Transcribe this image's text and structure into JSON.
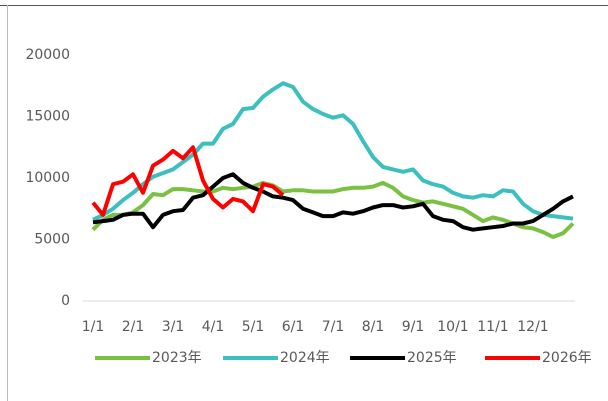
{
  "chart_data": {
    "type": "line",
    "categories": [
      "1/1",
      null,
      null,
      null,
      "2/1",
      null,
      null,
      null,
      "3/1",
      null,
      null,
      null,
      "4/1",
      null,
      null,
      null,
      "5/1",
      null,
      null,
      null,
      "6/1",
      null,
      null,
      null,
      "7/1",
      null,
      null,
      null,
      "8/1",
      null,
      null,
      null,
      "9/1",
      null,
      null,
      null,
      "10/1",
      null,
      null,
      null,
      "11/1",
      null,
      null,
      null,
      "12/1",
      null,
      null,
      null,
      null
    ],
    "series": [
      {
        "name": "2023年",
        "color": "#7ac143",
        "values": [
          5800,
          6600,
          7000,
          7000,
          7200,
          7800,
          8700,
          8600,
          9100,
          9100,
          9000,
          8900,
          8900,
          9200,
          9100,
          9200,
          9300,
          9600,
          9400,
          8900,
          9000,
          9000,
          8900,
          8900,
          8900,
          9100,
          9200,
          9200,
          9300,
          9600,
          9200,
          8500,
          8200,
          8000,
          8100,
          7900,
          7700,
          7500,
          7000,
          6500,
          6800,
          6600,
          6300,
          6000,
          5900,
          5600,
          5200,
          5500,
          6300
        ]
      },
      {
        "name": "2024年",
        "color": "#3cbfbf",
        "values": [
          6600,
          7000,
          7500,
          8200,
          8800,
          9500,
          10100,
          10400,
          10700,
          11300,
          11900,
          12800,
          12800,
          14000,
          14400,
          15600,
          15700,
          16600,
          17200,
          17700,
          17400,
          16200,
          15600,
          15200,
          14900,
          15100,
          14400,
          13000,
          11700,
          10900,
          10700,
          10500,
          10700,
          9800,
          9500,
          9300,
          8800,
          8500,
          8400,
          8600,
          8500,
          9000,
          8900,
          7900,
          7300,
          7000,
          6900,
          6800,
          6700
        ]
      },
      {
        "name": "2025年",
        "color": "#000000",
        "values": [
          6400,
          6500,
          6600,
          7000,
          7100,
          7100,
          6000,
          7000,
          7300,
          7400,
          8400,
          8600,
          9300,
          10000,
          10300,
          9600,
          9200,
          8900,
          8500,
          8400,
          8200,
          7500,
          7200,
          6900,
          6900,
          7200,
          7100,
          7300,
          7600,
          7800,
          7800,
          7600,
          7700,
          7900,
          6900,
          6600,
          6500,
          6000,
          5800,
          5900,
          6000,
          6100,
          6300,
          6300,
          6500,
          7000,
          7500,
          8100,
          8500
        ]
      },
      {
        "name": "2026年",
        "color": "#ff0000",
        "values": [
          8000,
          7000,
          9500,
          9700,
          10300,
          8800,
          11000,
          11500,
          12200,
          11600,
          12500,
          9800,
          8300,
          7600,
          8300,
          8100,
          7300,
          9500,
          9300,
          8600,
          null,
          null,
          null,
          null,
          null,
          null,
          null,
          null,
          null,
          null,
          null,
          null,
          null,
          null,
          null,
          null,
          null,
          null,
          null,
          null,
          null,
          null,
          null,
          null,
          null,
          null,
          null,
          null,
          null
        ]
      }
    ],
    "ylim": [
      0,
      20000
    ],
    "yticks": [
      0,
      5000,
      10000,
      15000,
      20000
    ],
    "grid": false,
    "legend": "bottom"
  }
}
